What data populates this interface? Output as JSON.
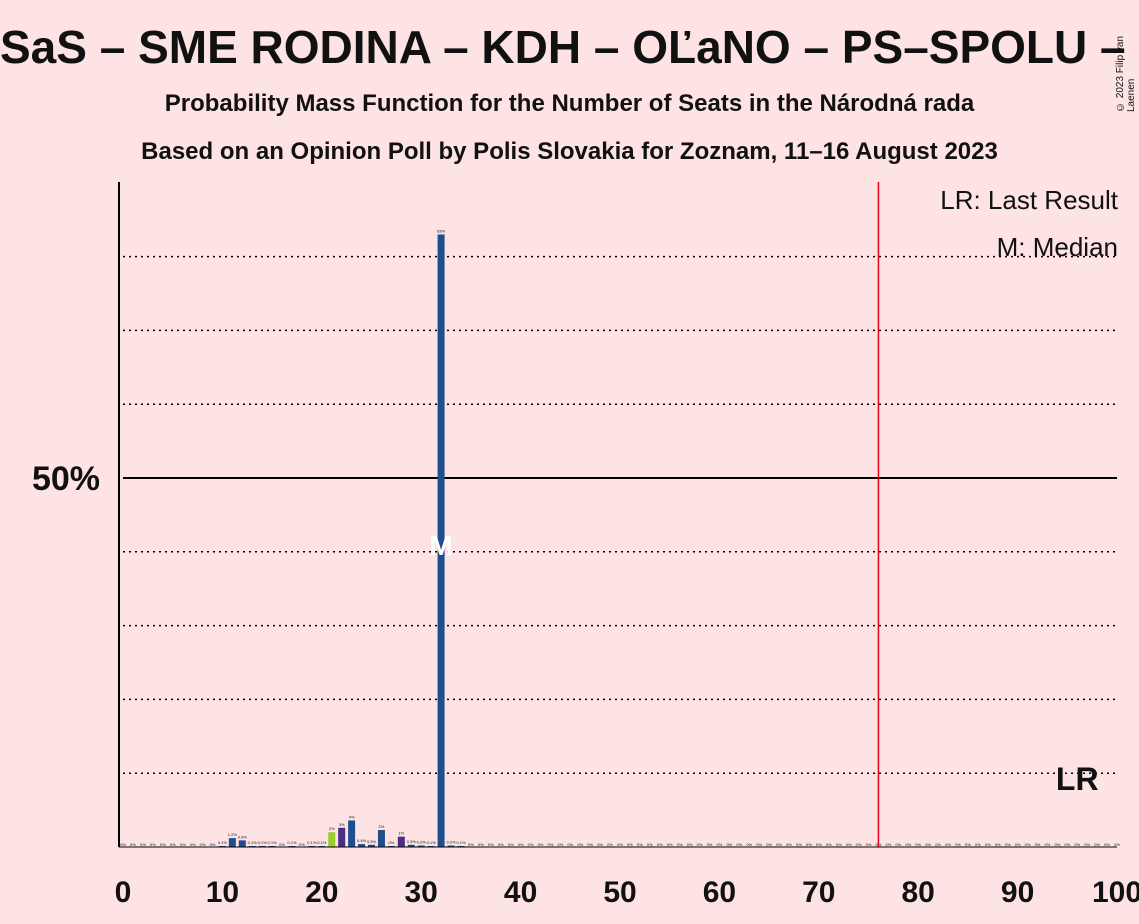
{
  "header": {
    "title": "SaS – SME RODINA – KDH – OĽaNO – PS–SPOLU – ZL",
    "subtitle1": "Probability Mass Function for the Number of Seats in the Národná rada",
    "subtitle2": "Based on an Opinion Poll by Polis Slovakia for Zoznam, 11–16 August 2023",
    "copyright": "© 2023 Filip van Laenen"
  },
  "chart_data": {
    "type": "bar",
    "xlabel": "",
    "ylabel": "",
    "xlim": [
      0,
      100
    ],
    "ylim": [
      0,
      90
    ],
    "x_ticks": [
      0,
      10,
      20,
      30,
      40,
      50,
      60,
      70,
      80,
      90,
      100
    ],
    "x_tick_labels": [
      "0",
      "10",
      "20",
      "30",
      "40",
      "50",
      "60",
      "70",
      "80",
      "90",
      "100"
    ],
    "y_tick_label": "50%",
    "y_tick_value": 50,
    "gridlines": [
      10,
      20,
      30,
      40,
      60,
      70,
      80
    ],
    "majority_line": 76,
    "last_result": 96,
    "median": 32,
    "legend": [
      "LR: Last Result",
      "M: Median"
    ],
    "lr_label": "LR",
    "median_marker": "M",
    "colors": {
      "background": "#fde3e3",
      "default_bar": "#1f4e8c",
      "majority": "#e8001c",
      "axis": "#000000"
    },
    "bars": [
      {
        "x": 10,
        "value": 0.1,
        "label": "0.1%",
        "color": "#1f4e8c"
      },
      {
        "x": 11,
        "value": 1.2,
        "label": "1.2%",
        "color": "#1f4e8c"
      },
      {
        "x": 12,
        "value": 0.9,
        "label": "0.9%",
        "color": "#1f4e8c"
      },
      {
        "x": 13,
        "value": 0.1,
        "label": "0.1%",
        "color": "#1f4e8c"
      },
      {
        "x": 14,
        "value": 0.1,
        "label": "0.1%",
        "color": "#1f4e8c"
      },
      {
        "x": 15,
        "value": 0.1,
        "label": "0.1%",
        "color": "#1f4e8c"
      },
      {
        "x": 17,
        "value": 0.1,
        "label": "0.1%",
        "color": "#1f4e8c"
      },
      {
        "x": 19,
        "value": 0.1,
        "label": "0.1%",
        "color": "#1f4e8c"
      },
      {
        "x": 20,
        "value": 0.1,
        "label": "0.1%",
        "color": "#1f4e8c"
      },
      {
        "x": 21,
        "value": 2.0,
        "label": "2%",
        "color": "#9acd32"
      },
      {
        "x": 22,
        "value": 2.6,
        "label": "3%",
        "color": "#4b2e83"
      },
      {
        "x": 23,
        "value": 3.6,
        "label": "4%",
        "color": "#1f4e8c"
      },
      {
        "x": 24,
        "value": 0.4,
        "label": "0.4%",
        "color": "#1f4e8c"
      },
      {
        "x": 25,
        "value": 0.3,
        "label": "0.3%",
        "color": "#1f4e8c"
      },
      {
        "x": 26,
        "value": 2.3,
        "label": "2%",
        "color": "#1f4e8c"
      },
      {
        "x": 27,
        "value": 0.1,
        "label": "0%",
        "color": "#1f4e8c"
      },
      {
        "x": 28,
        "value": 1.4,
        "label": "1%",
        "color": "#4b2e83"
      },
      {
        "x": 29,
        "value": 0.3,
        "label": "0.3%",
        "color": "#1f4e8c"
      },
      {
        "x": 30,
        "value": 0.2,
        "label": "0.2%",
        "color": "#1f4e8c"
      },
      {
        "x": 31,
        "value": 0.1,
        "label": "0.1%",
        "color": "#1f4e8c"
      },
      {
        "x": 32,
        "value": 83,
        "label": "83%",
        "color": "#1f4e8c"
      },
      {
        "x": 33,
        "value": 0.2,
        "label": "0.2%",
        "color": "#1f4e8c"
      },
      {
        "x": 34,
        "value": 0.1,
        "label": "0.1%",
        "color": "#1f4e8c"
      }
    ]
  }
}
